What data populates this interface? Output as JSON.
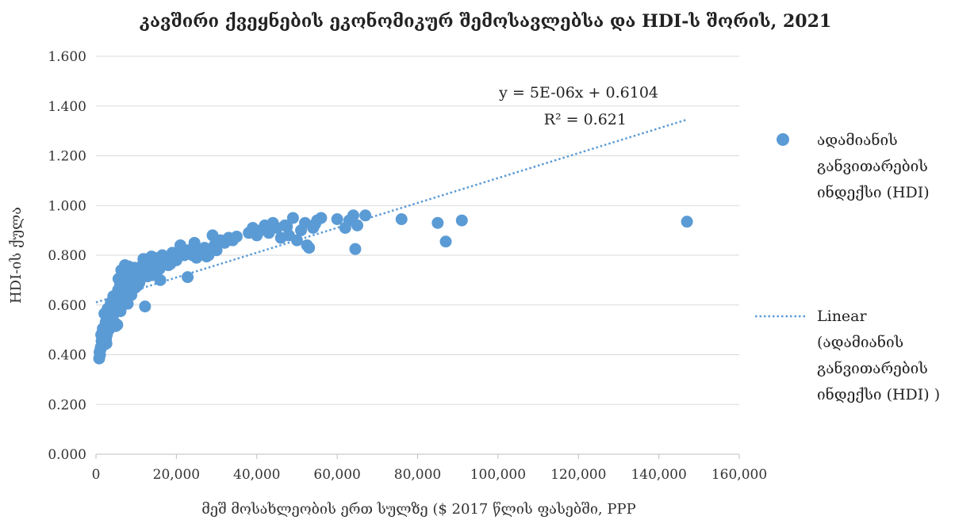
{
  "chart_data": {
    "type": "scatter",
    "title": "კავშირი ქვეყნების ეკონომიკურ შემოსავლებსა და HDI-ს შორის, 2021",
    "xlabel": "მეშ მოსახლეობის ერთ სულზე ($ 2017 წლის ფასებში, PPP",
    "ylabel": "HDI-ის ქულა",
    "xlim": [
      0,
      160000
    ],
    "ylim": [
      0,
      1.6
    ],
    "x_ticks": [
      "0",
      "20,000",
      "40,000",
      "60,000",
      "80,000",
      "100,000",
      "120,000",
      "140,000",
      "160,000"
    ],
    "y_ticks": [
      "0.000",
      "0.200",
      "0.400",
      "0.600",
      "0.800",
      "1.000",
      "1.200",
      "1.400",
      "1.600"
    ],
    "grid": "horizontal",
    "legend_position": "right",
    "series": [
      {
        "name": "ადამიანის განვითარების ინდექსი (HDI)",
        "color": "#5b9bd5",
        "points": [
          [
            800,
            0.385
          ],
          [
            1000,
            0.4
          ],
          [
            1200,
            0.43
          ],
          [
            1500,
            0.45
          ],
          [
            1100,
            0.42
          ],
          [
            1800,
            0.47
          ],
          [
            2000,
            0.44
          ],
          [
            1300,
            0.48
          ],
          [
            2200,
            0.5
          ],
          [
            2500,
            0.46
          ],
          [
            900,
            0.41
          ],
          [
            1600,
            0.49
          ],
          [
            2800,
            0.52
          ],
          [
            3000,
            0.54
          ],
          [
            3200,
            0.5
          ],
          [
            2400,
            0.53
          ],
          [
            3500,
            0.56
          ],
          [
            3800,
            0.58
          ],
          [
            4000,
            0.55
          ],
          [
            4200,
            0.6
          ],
          [
            4500,
            0.62
          ],
          [
            4800,
            0.57
          ],
          [
            5000,
            0.64
          ],
          [
            5200,
            0.59
          ],
          [
            5500,
            0.66
          ],
          [
            5800,
            0.63
          ],
          [
            6000,
            0.68
          ],
          [
            6200,
            0.61
          ],
          [
            6500,
            0.7
          ],
          [
            6800,
            0.65
          ],
          [
            7000,
            0.72
          ],
          [
            7300,
            0.67
          ],
          [
            7500,
            0.74
          ],
          [
            7800,
            0.69
          ],
          [
            8000,
            0.71
          ],
          [
            8300,
            0.66
          ],
          [
            8600,
            0.73
          ],
          [
            9000,
            0.7
          ],
          [
            9500,
            0.75
          ],
          [
            10000,
            0.72
          ],
          [
            10500,
            0.68
          ],
          [
            11000,
            0.74
          ],
          [
            11500,
            0.76
          ],
          [
            12000,
            0.73
          ],
          [
            12200,
            0.594
          ],
          [
            12500,
            0.78
          ],
          [
            13000,
            0.75
          ],
          [
            13500,
            0.77
          ],
          [
            14000,
            0.72
          ],
          [
            14500,
            0.79
          ],
          [
            15000,
            0.76
          ],
          [
            15500,
            0.78
          ],
          [
            16000,
            0.7
          ],
          [
            16500,
            0.8
          ],
          [
            17000,
            0.77
          ],
          [
            17500,
            0.79
          ],
          [
            18000,
            0.76
          ],
          [
            19000,
            0.81
          ],
          [
            20000,
            0.78
          ],
          [
            21000,
            0.84
          ],
          [
            22000,
            0.8
          ],
          [
            22800,
            0.712
          ],
          [
            23000,
            0.82
          ],
          [
            24000,
            0.8
          ],
          [
            24500,
            0.85
          ],
          [
            25000,
            0.79
          ],
          [
            26000,
            0.81
          ],
          [
            27000,
            0.83
          ],
          [
            28000,
            0.8
          ],
          [
            29000,
            0.88
          ],
          [
            29500,
            0.84
          ],
          [
            30000,
            0.82
          ],
          [
            31000,
            0.86
          ],
          [
            32000,
            0.85
          ],
          [
            33000,
            0.87
          ],
          [
            34000,
            0.86
          ],
          [
            38000,
            0.89
          ],
          [
            39000,
            0.91
          ],
          [
            40000,
            0.88
          ],
          [
            41000,
            0.9
          ],
          [
            42000,
            0.92
          ],
          [
            43000,
            0.89
          ],
          [
            44000,
            0.93
          ],
          [
            45000,
            0.91
          ],
          [
            46000,
            0.87
          ],
          [
            47000,
            0.92
          ],
          [
            48000,
            0.88
          ],
          [
            49000,
            0.95
          ],
          [
            50000,
            0.86
          ],
          [
            51000,
            0.9
          ],
          [
            52000,
            0.93
          ],
          [
            52500,
            0.84
          ],
          [
            53000,
            0.83
          ],
          [
            54000,
            0.91
          ],
          [
            55000,
            0.94
          ],
          [
            56000,
            0.95
          ],
          [
            60000,
            0.945
          ],
          [
            62000,
            0.91
          ],
          [
            63000,
            0.94
          ],
          [
            64000,
            0.96
          ],
          [
            64500,
            0.825
          ],
          [
            65000,
            0.92
          ],
          [
            67000,
            0.96
          ],
          [
            76000,
            0.945
          ],
          [
            85000,
            0.93
          ],
          [
            87000,
            0.855
          ],
          [
            91000,
            0.94
          ],
          [
            147000,
            0.935
          ],
          [
            3300,
            0.51
          ],
          [
            4600,
            0.53
          ],
          [
            5300,
            0.52
          ],
          [
            2700,
            0.48
          ],
          [
            3700,
            0.61
          ],
          [
            6700,
            0.6
          ],
          [
            7600,
            0.62
          ],
          [
            8800,
            0.64
          ],
          [
            9800,
            0.67
          ],
          [
            10800,
            0.69
          ],
          [
            5600,
            0.705
          ],
          [
            6300,
            0.74
          ],
          [
            7200,
            0.76
          ],
          [
            8100,
            0.755
          ],
          [
            11800,
            0.785
          ],
          [
            13800,
            0.795
          ],
          [
            2100,
            0.565
          ],
          [
            2900,
            0.585
          ],
          [
            4300,
            0.635
          ],
          [
            1400,
            0.455
          ],
          [
            1700,
            0.505
          ],
          [
            2600,
            0.445
          ],
          [
            3900,
            0.525
          ],
          [
            4900,
            0.515
          ],
          [
            6100,
            0.575
          ],
          [
            7900,
            0.605
          ],
          [
            9300,
            0.685
          ],
          [
            12800,
            0.715
          ],
          [
            15800,
            0.745
          ],
          [
            18500,
            0.765
          ],
          [
            20500,
            0.795
          ],
          [
            25500,
            0.815
          ],
          [
            27500,
            0.795
          ],
          [
            35000,
            0.875
          ],
          [
            43500,
            0.905
          ],
          [
            47500,
            0.915
          ],
          [
            54500,
            0.925
          ]
        ]
      }
    ],
    "trendline": {
      "name": "Linear (ადამიანის განვითარების ინდექსი (HDI) )",
      "type": "linear",
      "equation": "y = 5E-06x + 0.6104",
      "r_squared": "R² = 0.621",
      "slope": 5e-06,
      "intercept": 0.6104,
      "x_range": [
        0,
        147000
      ],
      "color": "#5b9bd5"
    },
    "legend": {
      "marker_lines": [
        "ადამიანის",
        "განვითარების",
        "ინდექსი (HDI)"
      ],
      "trend_lines": [
        "Linear",
        "(ადამიანის",
        "განვითარების",
        "ინდექსი (HDI) )"
      ]
    }
  }
}
